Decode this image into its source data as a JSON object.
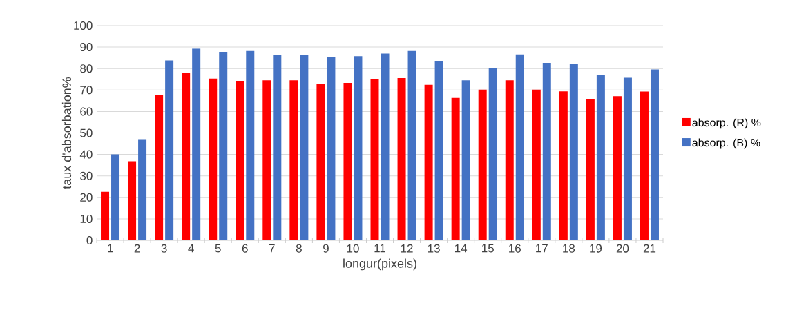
{
  "chart_data": {
    "type": "bar",
    "xlabel": "longur(pixels)",
    "ylabel": "taux d'absorbation%",
    "categories": [
      "1",
      "2",
      "3",
      "4",
      "5",
      "6",
      "7",
      "8",
      "9",
      "10",
      "11",
      "12",
      "13",
      "14",
      "15",
      "16",
      "17",
      "18",
      "19",
      "20",
      "21"
    ],
    "series": [
      {
        "name": "absorp. (R) %",
        "color": "#ff0000",
        "values": [
          22.6,
          36.8,
          67.7,
          77.9,
          75.3,
          74.1,
          74.5,
          74.5,
          72.9,
          73.3,
          74.9,
          75.6,
          72.4,
          66.3,
          70.2,
          74.5,
          70.2,
          69.4,
          65.6,
          67.1,
          69.3
        ]
      },
      {
        "name": "absorp. (B) %",
        "color": "#4472c4",
        "values": [
          40.0,
          47.1,
          83.8,
          89.3,
          87.8,
          88.2,
          86.2,
          86.2,
          85.4,
          85.8,
          87.0,
          88.2,
          83.4,
          74.5,
          80.3,
          86.6,
          82.6,
          82.0,
          76.9,
          75.7,
          79.6
        ]
      }
    ],
    "ylim": [
      0,
      100
    ],
    "yticks": [
      0,
      10,
      20,
      30,
      40,
      50,
      60,
      70,
      80,
      90,
      100
    ],
    "grid": "y",
    "legend": "right"
  }
}
